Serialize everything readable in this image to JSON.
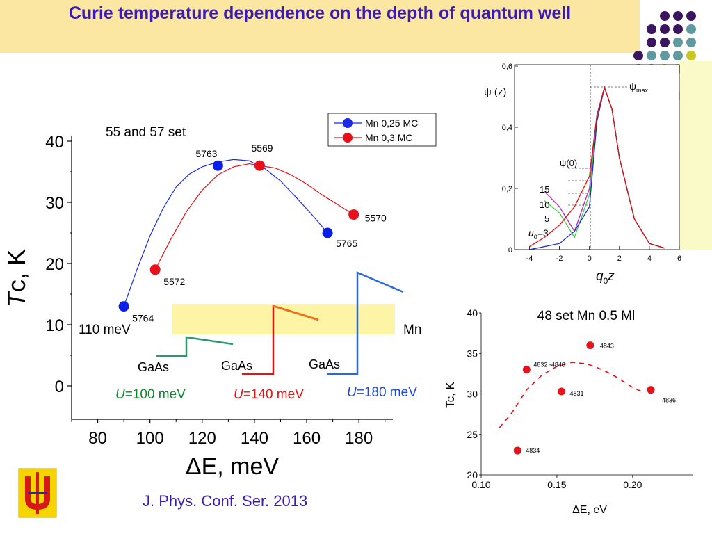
{
  "title": "Curie temperature dependence on the depth of quantum well",
  "citation": "J. Phys. Conf. Ser. 2013",
  "logo_name": "university-emblem",
  "colors": {
    "title": "#3a1bb8",
    "title_bg": "#fbe7a2",
    "blue": "#0a1ee6",
    "red": "#e8101a",
    "green": "#0a8a2a"
  },
  "main_chart_labels": {
    "set_label": "55 and 57 set",
    "offset_label": "110 meV",
    "mn_label": "Mn",
    "gaas1": "GaAs",
    "gaas2": "GaAs",
    "gaas3": "GaAs",
    "u1_italic": "U",
    "u1_rest": "=100 meV",
    "u2_italic": "U",
    "u2_rest": "=140 meV",
    "u3_italic": "U",
    "u3_rest": "=180 meV"
  },
  "psi_labels": {
    "ylabel": "ψ (z)",
    "psimax": "ψ",
    "psimax_sub": "max",
    "psi0": "ψ(0)",
    "u15": "15",
    "u10": "10",
    "u5": "5",
    "u3_pre": "u",
    "u3_sub": "0",
    "u3_post": "=3",
    "xlabel_q": "q",
    "xlabel_sub": "0",
    "xlabel_z": "z"
  },
  "chart_data": [
    {
      "type": "scatter",
      "title": "",
      "xlabel": "ΔE, meV",
      "ylabel": "Tc, K",
      "xlim": [
        70,
        193
      ],
      "ylim": [
        -5,
        40
      ],
      "xticks": [
        80,
        100,
        120,
        140,
        160,
        180
      ],
      "yticks": [
        0,
        10,
        20,
        30,
        40
      ],
      "legend_position": "top-right",
      "series": [
        {
          "name": "Mn 0,25 MC",
          "color": "#0a1ee6",
          "points": [
            {
              "x": 90,
              "y": 13,
              "label": "5764"
            },
            {
              "x": 126,
              "y": 36,
              "label": "5763"
            },
            {
              "x": 168,
              "y": 25,
              "label": "5765"
            }
          ],
          "curve": [
            {
              "x": 90,
              "y": 13
            },
            {
              "x": 95,
              "y": 19
            },
            {
              "x": 100,
              "y": 24.5
            },
            {
              "x": 105,
              "y": 29
            },
            {
              "x": 110,
              "y": 32.5
            },
            {
              "x": 115,
              "y": 34.6
            },
            {
              "x": 120,
              "y": 35.8
            },
            {
              "x": 126,
              "y": 36.6
            },
            {
              "x": 132,
              "y": 37
            },
            {
              "x": 138,
              "y": 36.8
            },
            {
              "x": 144,
              "y": 35.5
            },
            {
              "x": 150,
              "y": 33.5
            },
            {
              "x": 156,
              "y": 30.8
            },
            {
              "x": 162,
              "y": 28
            },
            {
              "x": 168,
              "y": 25
            }
          ]
        },
        {
          "name": "Mn 0,3 MC",
          "color": "#e8101a",
          "points": [
            {
              "x": 102,
              "y": 19,
              "label": "5572"
            },
            {
              "x": 142,
              "y": 36,
              "label": "5569"
            },
            {
              "x": 178,
              "y": 28,
              "label": "5570"
            }
          ],
          "curve": [
            {
              "x": 102,
              "y": 19
            },
            {
              "x": 108,
              "y": 24
            },
            {
              "x": 114,
              "y": 28.5
            },
            {
              "x": 120,
              "y": 32
            },
            {
              "x": 126,
              "y": 34.5
            },
            {
              "x": 132,
              "y": 35.8
            },
            {
              "x": 138,
              "y": 36.3
            },
            {
              "x": 142,
              "y": 36
            },
            {
              "x": 148,
              "y": 35.6
            },
            {
              "x": 154,
              "y": 34.5
            },
            {
              "x": 160,
              "y": 33
            },
            {
              "x": 166,
              "y": 31.2
            },
            {
              "x": 172,
              "y": 29.6
            },
            {
              "x": 178,
              "y": 28
            }
          ]
        }
      ]
    },
    {
      "type": "line",
      "title": "",
      "xlabel": "q0z",
      "ylabel": "ψ (z)",
      "xlim": [
        -5,
        6
      ],
      "ylim": [
        0,
        0.6
      ],
      "xticks": [
        -4,
        -2,
        0,
        2,
        4,
        6
      ],
      "yticks": [
        "0",
        "0,2",
        "0,4",
        "0,6"
      ],
      "series": [
        {
          "name": "15",
          "color": "#c020c0",
          "points": [
            {
              "x": -3,
              "y": 0.19
            },
            {
              "x": -2,
              "y": 0.14
            },
            {
              "x": -1,
              "y": 0.06
            },
            {
              "x": 0,
              "y": 0.2
            },
            {
              "x": 0.5,
              "y": 0.44
            },
            {
              "x": 1,
              "y": 0.53
            },
            {
              "x": 1.5,
              "y": 0.46
            },
            {
              "x": 2,
              "y": 0.3
            },
            {
              "x": 3,
              "y": 0.1
            },
            {
              "x": 4,
              "y": 0.02
            },
            {
              "x": 5,
              "y": 0.005
            }
          ]
        },
        {
          "name": "10",
          "color": "#40d040",
          "points": [
            {
              "x": -3,
              "y": 0.16
            },
            {
              "x": -2,
              "y": 0.12
            },
            {
              "x": -1,
              "y": 0.04
            },
            {
              "x": 0,
              "y": 0.18
            },
            {
              "x": 0.5,
              "y": 0.43
            },
            {
              "x": 1,
              "y": 0.53
            },
            {
              "x": 1.5,
              "y": 0.46
            },
            {
              "x": 2,
              "y": 0.3
            },
            {
              "x": 3,
              "y": 0.1
            },
            {
              "x": 4,
              "y": 0.02
            },
            {
              "x": 5,
              "y": 0.005
            }
          ]
        },
        {
          "name": "5",
          "color": "#1a2ad0",
          "points": [
            {
              "x": -4,
              "y": 0.0
            },
            {
              "x": -2,
              "y": 0.02
            },
            {
              "x": -1,
              "y": 0.06
            },
            {
              "x": 0,
              "y": 0.14
            },
            {
              "x": 0.5,
              "y": 0.42
            },
            {
              "x": 1,
              "y": 0.53
            },
            {
              "x": 1.5,
              "y": 0.46
            },
            {
              "x": 2,
              "y": 0.3
            },
            {
              "x": 3,
              "y": 0.1
            },
            {
              "x": 4,
              "y": 0.02
            },
            {
              "x": 5,
              "y": 0.005
            }
          ]
        },
        {
          "name": "u0=3",
          "color": "#e01010",
          "points": [
            {
              "x": -4,
              "y": 0.01
            },
            {
              "x": -3,
              "y": 0.04
            },
            {
              "x": -2,
              "y": 0.08
            },
            {
              "x": -1,
              "y": 0.14
            },
            {
              "x": 0,
              "y": 0.24
            },
            {
              "x": 0.5,
              "y": 0.44
            },
            {
              "x": 1,
              "y": 0.53
            },
            {
              "x": 1.5,
              "y": 0.46
            },
            {
              "x": 2,
              "y": 0.3
            },
            {
              "x": 3,
              "y": 0.1
            },
            {
              "x": 4,
              "y": 0.02
            },
            {
              "x": 5,
              "y": 0.005
            }
          ]
        }
      ]
    },
    {
      "type": "scatter",
      "title": "48 set Mn 0.5 Ml",
      "xlabel": "ΔE, eV",
      "ylabel": "Tc, K",
      "xlim": [
        0.1,
        0.24
      ],
      "ylim": [
        20,
        40
      ],
      "xticks": [
        "0.10",
        "0.15",
        "0.20"
      ],
      "yticks": [
        20,
        25,
        30,
        35,
        40
      ],
      "series": [
        {
          "name": "",
          "color": "#e8101a",
          "points": [
            {
              "x": 0.124,
              "y": 23,
              "label": "4834"
            },
            {
              "x": 0.13,
              "y": 33,
              "label": "4832 -4848"
            },
            {
              "x": 0.153,
              "y": 30.3,
              "label": "4831"
            },
            {
              "x": 0.172,
              "y": 36,
              "label": "4843"
            },
            {
              "x": 0.212,
              "y": 30.5,
              "label": "4836"
            }
          ],
          "fit": [
            {
              "x": 0.112,
              "y": 25.8
            },
            {
              "x": 0.12,
              "y": 27.6
            },
            {
              "x": 0.13,
              "y": 30.5
            },
            {
              "x": 0.14,
              "y": 32.3
            },
            {
              "x": 0.15,
              "y": 33.4
            },
            {
              "x": 0.16,
              "y": 33.9
            },
            {
              "x": 0.17,
              "y": 33.7
            },
            {
              "x": 0.18,
              "y": 33
            },
            {
              "x": 0.19,
              "y": 32
            },
            {
              "x": 0.2,
              "y": 30.8
            },
            {
              "x": 0.207,
              "y": 30.2
            }
          ]
        }
      ]
    }
  ]
}
